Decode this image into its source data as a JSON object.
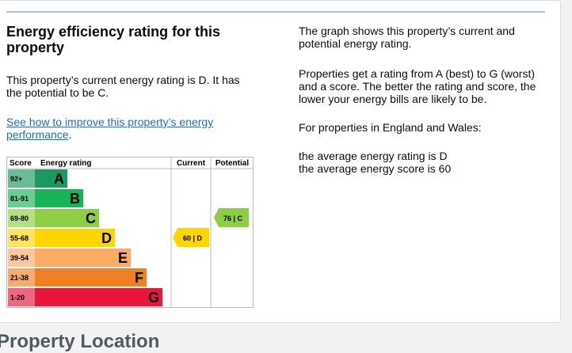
{
  "heading": "Energy efficiency rating for this property",
  "summary": "This property’s current energy rating is D. It has the potential to be C.",
  "link": {
    "text": "See how to improve this property’s energy performance",
    "suffix": "."
  },
  "epc": {
    "headers": [
      "Score",
      "Energy rating",
      "Current",
      "Potential"
    ],
    "bands": [
      {
        "range": "92+",
        "letter": "A",
        "color": "#1a9a5f"
      },
      {
        "range": "81-91",
        "letter": "B",
        "color": "#19b459"
      },
      {
        "range": "69-80",
        "letter": "C",
        "color": "#8dce46"
      },
      {
        "range": "55-68",
        "letter": "D",
        "color": "#ffd500"
      },
      {
        "range": "39-54",
        "letter": "E",
        "color": "#fcaa65"
      },
      {
        "range": "21-38",
        "letter": "F",
        "color": "#ef8023"
      },
      {
        "range": "1-20",
        "letter": "G",
        "color": "#e9153b"
      }
    ],
    "current": {
      "label": "60 | D",
      "color": "#ffd500"
    },
    "potential": {
      "label": "76 | C",
      "color": "#8dce46"
    }
  },
  "info": [
    "The graph shows this property’s current and potential energy rating.",
    "Properties get a rating from A (best) to G (worst) and a score. The better the rating and score, the lower your energy bills are likely to be.",
    "For properties in England and Wales:",
    "the average energy rating is D",
    "the average energy score is 60"
  ],
  "next_heading": "Property Location"
}
